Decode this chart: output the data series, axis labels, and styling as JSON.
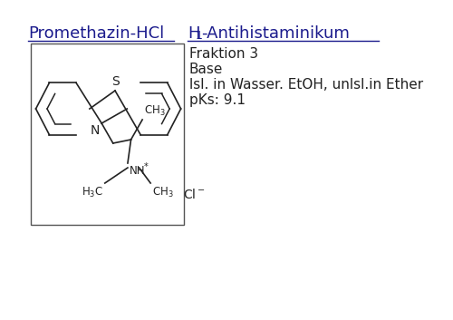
{
  "background_color": "#ffffff",
  "title_left": "Promethazin-HCl",
  "title_right_h": "H",
  "title_right_sub": "1",
  "title_right_rest": "-Antihistaminikum",
  "title_color": "#1a1a8c",
  "title_fontsize": 13,
  "info_lines": [
    "Fraktion 3",
    "Base",
    "lsl. in Wasser. EtOH, unlsl.in Ether",
    "pKs: 9.1"
  ],
  "info_fontsize": 11,
  "info_color": "#222222",
  "struct_color": "#222222",
  "lw": 1.2
}
